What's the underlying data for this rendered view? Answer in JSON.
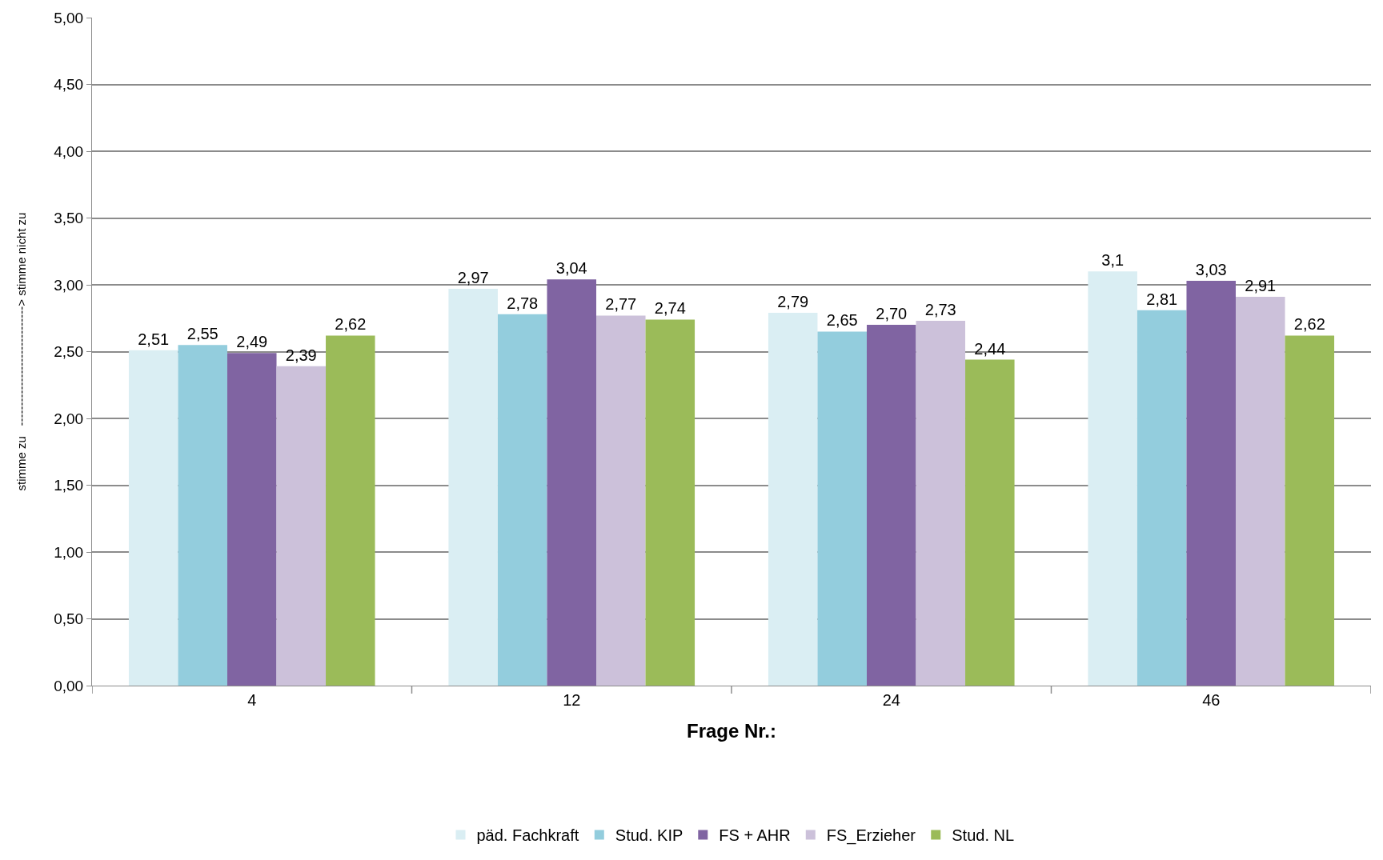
{
  "chart_data": {
    "type": "bar",
    "xlabel": "Frage Nr.:",
    "ylabel": "stimme zu   ------------------------------> stimme nicht zu",
    "categories": [
      "4",
      "12",
      "24",
      "46"
    ],
    "series": [
      {
        "name": "päd. Fachkraft",
        "color": "#daeef3",
        "values": [
          2.51,
          2.97,
          2.79,
          3.1
        ],
        "value_labels": [
          "2,51",
          "2,97",
          "2,79",
          "3,1"
        ]
      },
      {
        "name": "Stud. KIP",
        "color": "#93cddd",
        "values": [
          2.55,
          2.78,
          2.65,
          2.81
        ],
        "value_labels": [
          "2,55",
          "2,78",
          "2,65",
          "2,81"
        ]
      },
      {
        "name": "FS + AHR",
        "color": "#8064a2",
        "values": [
          2.49,
          3.04,
          2.7,
          3.03
        ],
        "value_labels": [
          "2,49",
          "3,04",
          "2,70",
          "3,03"
        ]
      },
      {
        "name": "FS_Erzieher",
        "color": "#ccc1da",
        "values": [
          2.39,
          2.77,
          2.73,
          2.91
        ],
        "value_labels": [
          "2,39",
          "2,77",
          "2,73",
          "2,91"
        ]
      },
      {
        "name": "Stud. NL",
        "color": "#9bbb59",
        "values": [
          2.62,
          2.74,
          2.44,
          2.62
        ],
        "value_labels": [
          "2,62",
          "2,74",
          "2,44",
          "2,62"
        ]
      }
    ],
    "ylim": [
      0,
      5
    ],
    "yticks": [
      {
        "value": 0,
        "label": "0,00"
      },
      {
        "value": 0.5,
        "label": "0,50"
      },
      {
        "value": 1,
        "label": "1,00"
      },
      {
        "value": 1.5,
        "label": "1,50"
      },
      {
        "value": 2,
        "label": "2,00"
      },
      {
        "value": 2.5,
        "label": "2,50"
      },
      {
        "value": 3,
        "label": "3,00"
      },
      {
        "value": 3.5,
        "label": "3,50"
      },
      {
        "value": 4,
        "label": "4,00"
      },
      {
        "value": 4.5,
        "label": "4,50"
      },
      {
        "value": 5,
        "label": "5,00"
      }
    ],
    "grid": "y",
    "legend": "bottom"
  }
}
